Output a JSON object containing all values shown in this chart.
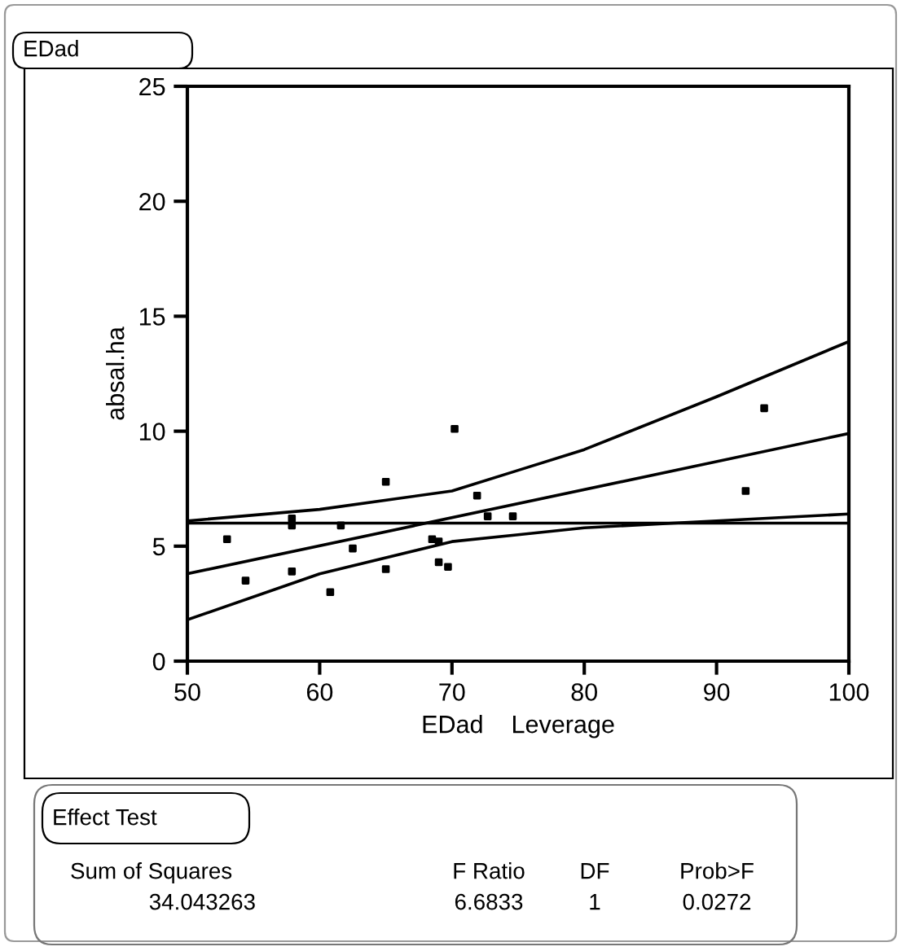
{
  "chart_data": {
    "type": "scatter",
    "title": "EDad",
    "xlabel": "EDad    Leverage",
    "ylabel": "absal.ha",
    "series": [
      {
        "color": "#000000",
        "marker": "square",
        "x": [
          53.0,
          54.4,
          57.9,
          57.9,
          57.9,
          60.8,
          61.6,
          62.5,
          65.0,
          65.0,
          68.5,
          69.0,
          69.0,
          69.7,
          70.2,
          71.9,
          72.7,
          74.6,
          92.2,
          93.6
        ],
        "values": [
          5.3,
          3.5,
          5.9,
          6.2,
          3.9,
          3.0,
          5.9,
          4.9,
          7.8,
          4.0,
          5.3,
          5.2,
          4.3,
          4.1,
          10.1,
          7.2,
          6.3,
          6.3,
          7.4,
          11.0
        ]
      },
      {
        "type": "line",
        "color": "#000000",
        "marker": "none",
        "line_style": "solid",
        "x": [
          50,
          100
        ],
        "values": [
          3.8,
          9.9
        ]
      },
      {
        "type": "line",
        "color": "#000000",
        "marker": "none",
        "line_style": "solid",
        "x": [
          50,
          60,
          70,
          75,
          80,
          90,
          100
        ],
        "values": [
          6.1,
          6.6,
          7.4,
          8.3,
          9.2,
          11.5,
          13.9
        ]
      },
      {
        "type": "line",
        "color": "#000000",
        "marker": "none",
        "line_style": "solid",
        "x": [
          50,
          60,
          70,
          75,
          80,
          90,
          100
        ],
        "values": [
          1.8,
          3.8,
          5.2,
          5.5,
          5.8,
          6.1,
          6.4
        ]
      }
    ],
    "ref_lines": [
      {
        "axis": "y",
        "value": 6.0,
        "color": "#000000"
      }
    ],
    "xlim": [
      50,
      100
    ],
    "xticks": [
      50,
      60,
      70,
      80,
      90,
      100
    ],
    "ylim": [
      0,
      25
    ],
    "yticks": [
      0,
      5,
      10,
      15,
      20,
      25
    ],
    "grid": false,
    "legend": false,
    "annotations": [
      "Effect Test",
      "Sum of Squares",
      "F Ratio",
      "DF",
      "Prob>F",
      "34.043263",
      "6.6833",
      "1",
      "0.0272"
    ]
  }
}
